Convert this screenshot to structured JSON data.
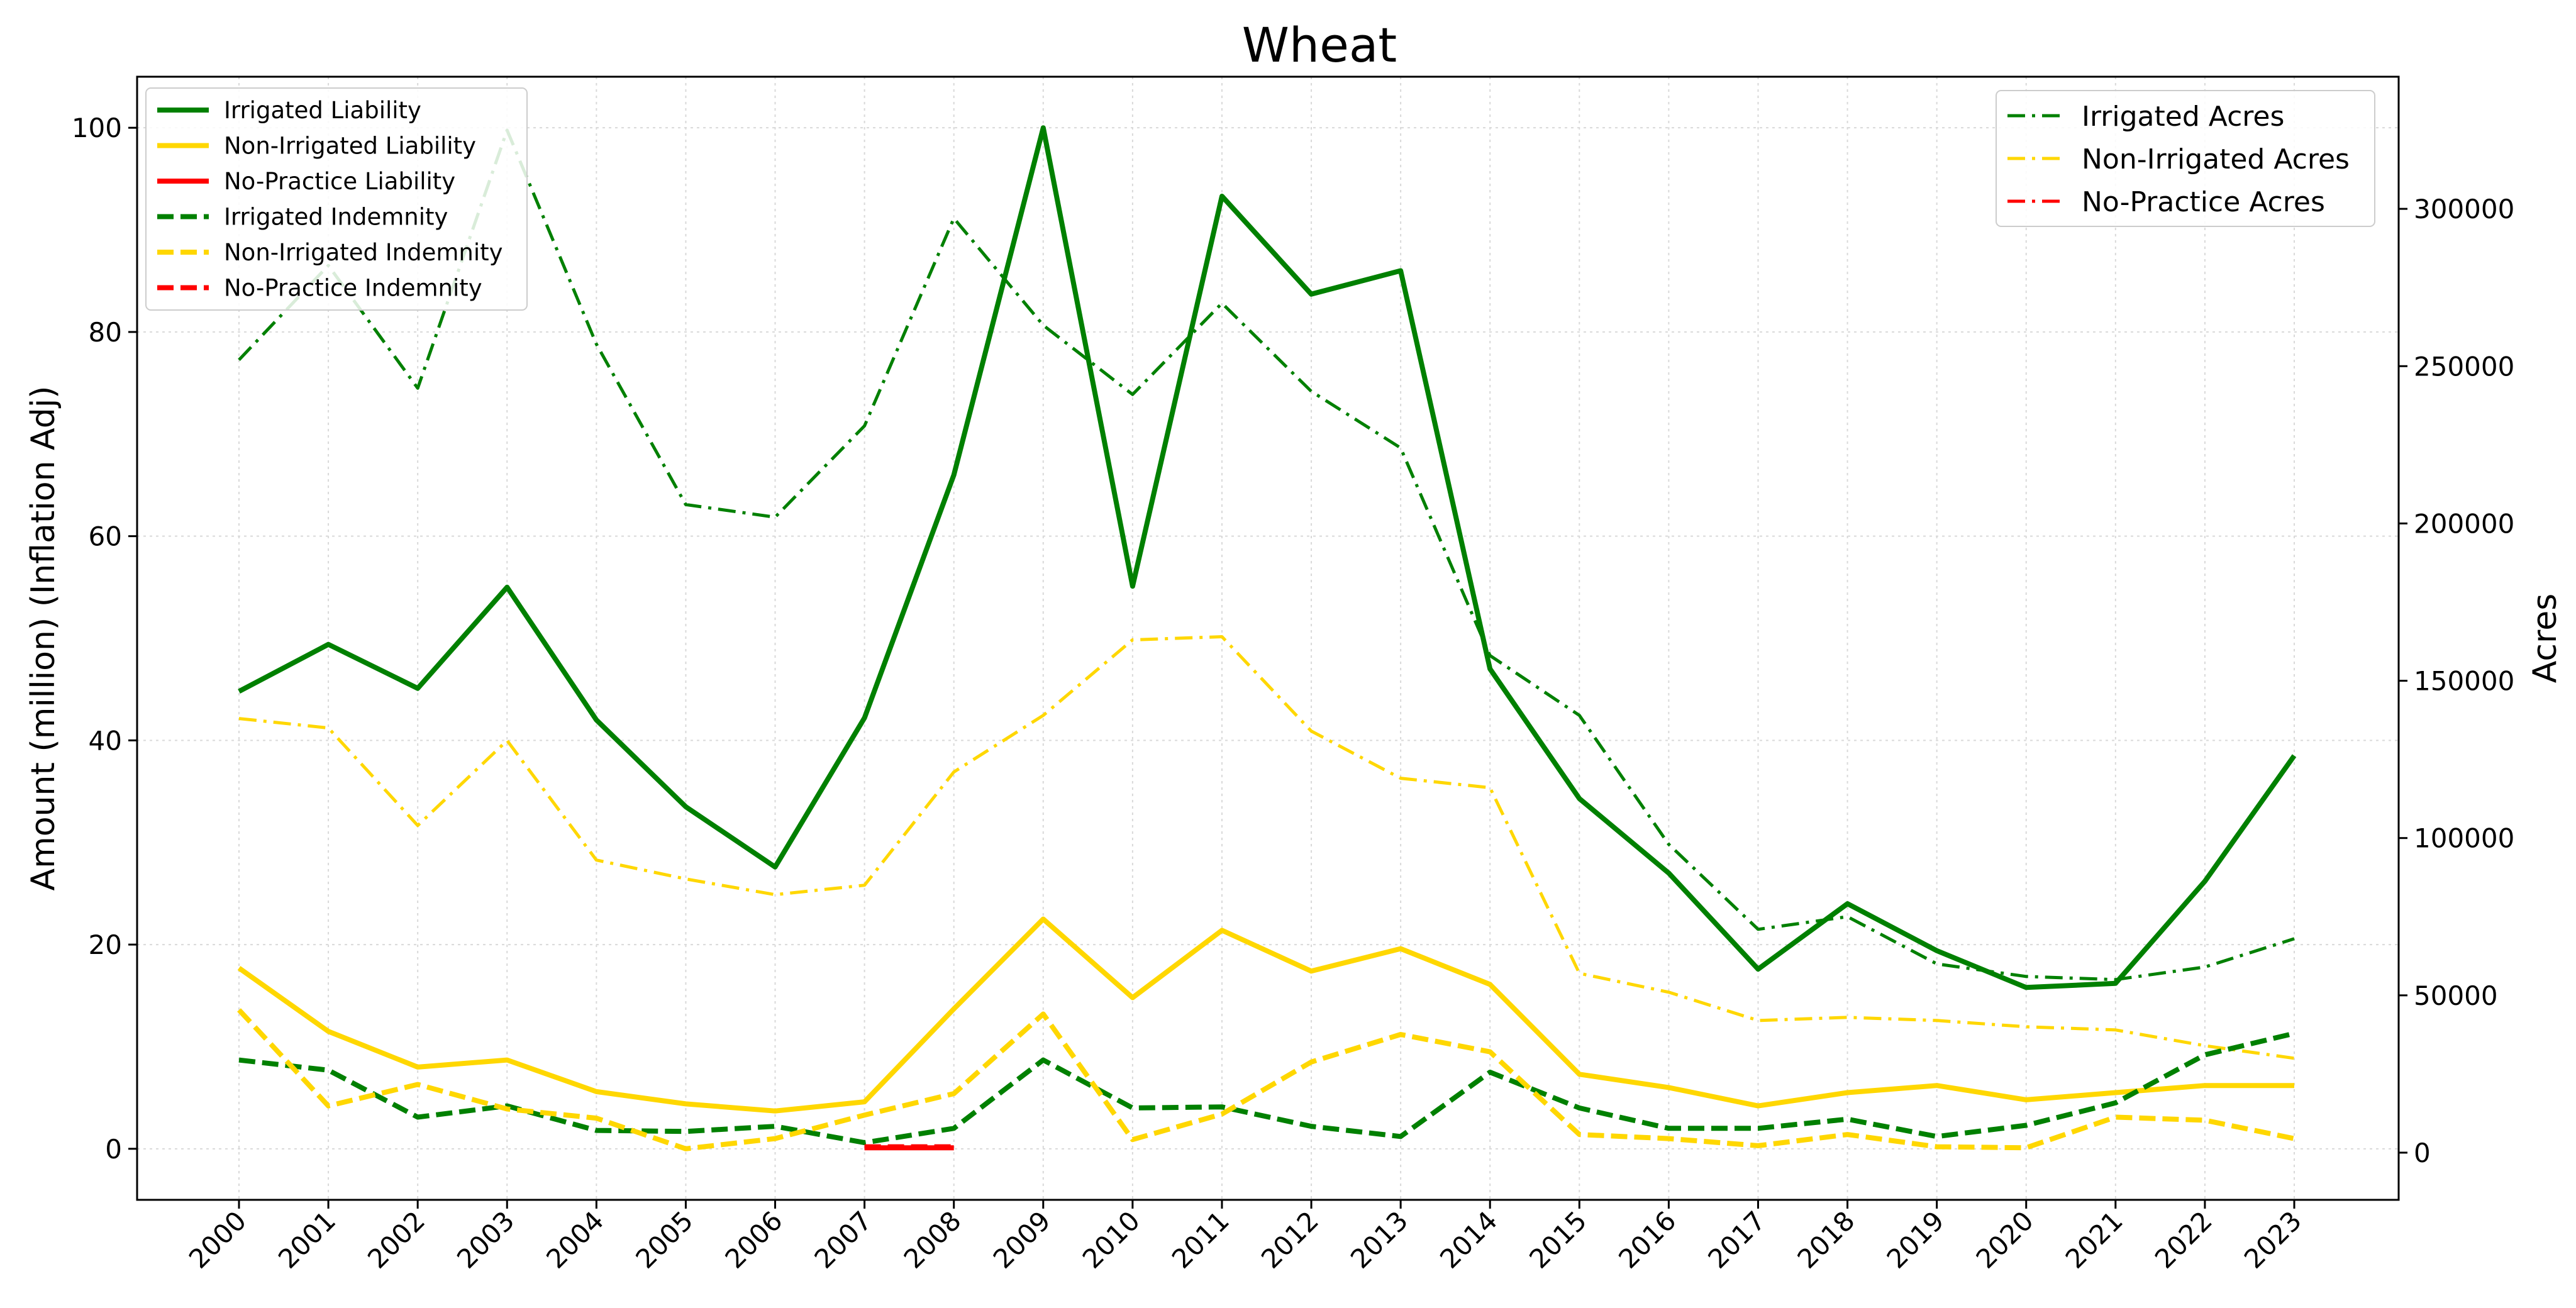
{
  "chart_data": {
    "type": "line",
    "title": "Wheat",
    "xlabel": "",
    "ylabel_left": "Amount (million) (Inflation Adj)",
    "ylabel_right": "Acres",
    "x": [
      "2000",
      "2001",
      "2002",
      "2003",
      "2004",
      "2005",
      "2006",
      "2007",
      "2008",
      "2009",
      "2010",
      "2011",
      "2012",
      "2013",
      "2014",
      "2015",
      "2016",
      "2017",
      "2018",
      "2019",
      "2020",
      "2021",
      "2022",
      "2023"
    ],
    "ylim_left": [
      -5,
      105
    ],
    "ylim_right": [
      -15000,
      342000
    ],
    "yticks_left": [
      0,
      20,
      40,
      60,
      80,
      100
    ],
    "yticks_right": [
      0,
      50000,
      100000,
      150000,
      200000,
      250000,
      300000
    ],
    "grid": true,
    "legend_left_placement": "top-left",
    "legend_right_placement": "top-right",
    "series_left": [
      {
        "name": "Irrigated Liability",
        "color": "#008000",
        "style": "solid",
        "values": [
          44.8,
          49.4,
          45.1,
          55.0,
          42.0,
          33.5,
          27.6,
          42.2,
          66.0,
          100.0,
          55.1,
          93.3,
          83.7,
          86.0,
          47.0,
          34.3,
          27.0,
          17.6,
          24.0,
          19.4,
          15.8,
          16.2,
          26.2,
          38.5
        ]
      },
      {
        "name": "Non-Irrigated Liability",
        "color": "#FFD700",
        "style": "solid",
        "values": [
          17.7,
          11.5,
          8.0,
          8.7,
          5.6,
          4.4,
          3.7,
          4.6,
          13.7,
          22.5,
          14.8,
          21.4,
          17.4,
          19.6,
          16.1,
          7.3,
          6.0,
          4.2,
          5.5,
          6.2,
          4.8,
          5.5,
          6.2,
          6.2
        ]
      },
      {
        "name": "No-Practice Liability",
        "color": "#FF0000",
        "style": "solid",
        "values": [
          null,
          null,
          null,
          null,
          null,
          null,
          null,
          0.1,
          0.1,
          null,
          null,
          null,
          null,
          null,
          null,
          null,
          null,
          null,
          null,
          null,
          null,
          null,
          null,
          null
        ]
      },
      {
        "name": "Irrigated Indemnity",
        "color": "#008000",
        "style": "dashed",
        "values": [
          8.7,
          7.7,
          3.1,
          4.2,
          1.8,
          1.7,
          2.2,
          0.6,
          2.0,
          8.7,
          4.0,
          4.1,
          2.2,
          1.2,
          7.5,
          4.0,
          2.0,
          2.0,
          2.9,
          1.2,
          2.3,
          4.5,
          9.2,
          11.3
        ]
      },
      {
        "name": "Non-Irrigated Indemnity",
        "color": "#FFD700",
        "style": "dashed",
        "values": [
          13.6,
          4.2,
          6.3,
          3.9,
          3.0,
          0.0,
          1.0,
          3.3,
          5.4,
          13.2,
          0.9,
          3.4,
          8.5,
          11.2,
          9.5,
          1.4,
          1.0,
          0.3,
          1.4,
          0.2,
          0.1,
          3.1,
          2.8,
          1.0
        ]
      },
      {
        "name": "No-Practice Indemnity",
        "color": "#FF0000",
        "style": "dashed",
        "values": [
          null,
          null,
          null,
          null,
          null,
          null,
          null,
          0.2,
          0.2,
          null,
          null,
          null,
          null,
          null,
          null,
          null,
          null,
          null,
          null,
          null,
          null,
          null,
          null,
          null
        ]
      }
    ],
    "series_right": [
      {
        "name": "Irrigated Acres",
        "color": "#008000",
        "style": "dashdot",
        "values": [
          252000,
          282000,
          243000,
          325000,
          257000,
          206000,
          202000,
          231000,
          297000,
          263000,
          241000,
          270000,
          242000,
          224000,
          158000,
          139000,
          98000,
          71000,
          75000,
          60000,
          56000,
          55000,
          59000,
          68000
        ]
      },
      {
        "name": "Non-Irrigated Acres",
        "color": "#FFD700",
        "style": "dashdot",
        "values": [
          138000,
          135000,
          104000,
          131000,
          93000,
          87000,
          82000,
          85000,
          121000,
          139000,
          163000,
          164000,
          134000,
          119000,
          116000,
          57000,
          51000,
          42000,
          43000,
          42000,
          40000,
          39000,
          34000,
          30000
        ]
      },
      {
        "name": "No-Practice Acres",
        "color": "#FF0000",
        "style": "dashdot",
        "values": [
          null,
          null,
          null,
          null,
          null,
          null,
          null,
          null,
          null,
          null,
          null,
          null,
          null,
          null,
          null,
          null,
          null,
          null,
          null,
          null,
          null,
          null,
          null,
          null
        ]
      }
    ]
  }
}
